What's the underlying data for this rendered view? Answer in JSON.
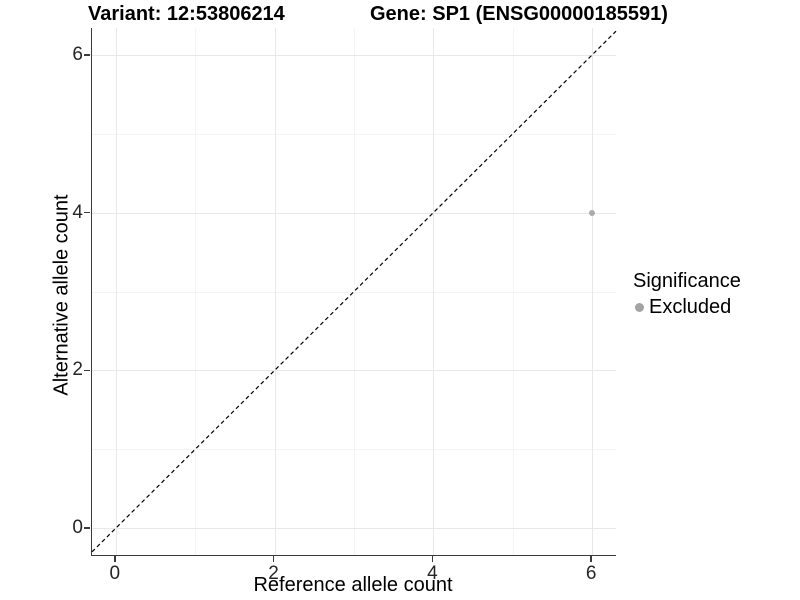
{
  "chart_data": {
    "type": "scatter",
    "title_left": "Variant: 12:53806214",
    "title_right": "Gene: SP1 (ENSG00000185591)",
    "xlabel": "Reference allele count",
    "ylabel": "Alternative allele count",
    "xlim": [
      -0.3,
      6.3
    ],
    "ylim": [
      -0.34,
      6.34
    ],
    "x_ticks_major": [
      0,
      2,
      4,
      6
    ],
    "y_ticks_major": [
      0,
      2,
      4,
      6
    ],
    "x_ticks_minor": [
      1,
      3,
      5
    ],
    "y_ticks_minor": [
      1,
      3,
      5
    ],
    "grid": true,
    "points": [
      {
        "x": 6,
        "y": 4,
        "series": "Excluded"
      }
    ],
    "point_radius_px": 3,
    "reference_line": {
      "type": "identity",
      "style": "dashed",
      "dash_pattern": [
        4,
        3
      ]
    },
    "legend": {
      "title": "Significance",
      "position": "right",
      "entries": [
        {
          "label": "Excluded",
          "color": "#a3a3a3"
        }
      ]
    }
  },
  "colors": {
    "background": "#ffffff",
    "point": "#ababab",
    "grid_major": "#e8e8e8",
    "grid_minor": "#f4f4f4",
    "axis_line": "#3a3a3a",
    "tick_label": "#262626",
    "reference_line": "#000000"
  }
}
